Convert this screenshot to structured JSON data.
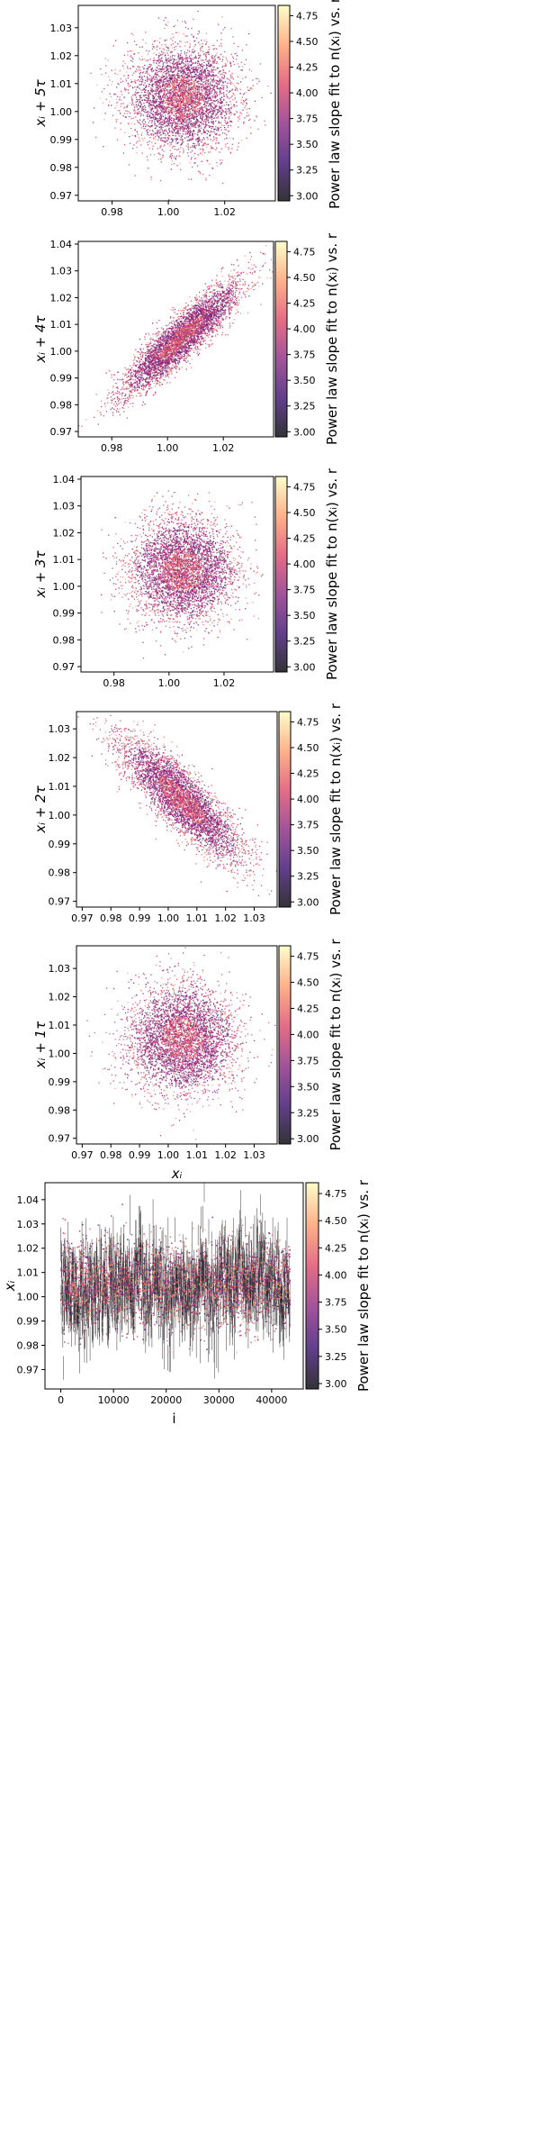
{
  "colors": {
    "colormap": [
      "#000004",
      "#3b0f70",
      "#8c2981",
      "#de4968",
      "#fe9f6d",
      "#fcfdbf"
    ],
    "axes": "#000000",
    "background": "#ffffff"
  },
  "colorbar": {
    "label": "Power law slope fit to n(xᵢ) vs. r",
    "ticks": [
      "3.00",
      "3.25",
      "3.50",
      "3.75",
      "4.00",
      "4.25",
      "4.50",
      "4.75"
    ],
    "range": [
      2.95,
      4.85
    ]
  },
  "chart_data": [
    {
      "type": "scatter",
      "description_axis": "x_i vs x_i+5tau",
      "ylabel": "xᵢ + 5τ",
      "xlabel": "",
      "xlim": [
        0.968,
        1.038
      ],
      "ylim": [
        0.968,
        1.038
      ],
      "xticks": [
        0.98,
        1.0,
        1.02
      ],
      "xtick_labels": [
        "0.98",
        "1.00",
        "1.02"
      ],
      "yticks": [
        0.97,
        0.98,
        0.99,
        1.0,
        1.01,
        1.02,
        1.03
      ],
      "ytick_labels": [
        "0.97",
        "0.98",
        "0.99",
        "1.00",
        "1.01",
        "1.02",
        "1.03"
      ],
      "correlation": 0.0,
      "center": [
        1.005,
        1.005
      ],
      "spread": 0.0095,
      "color_range": [
        3.0,
        4.8
      ]
    },
    {
      "type": "scatter",
      "ylabel": "xᵢ + 4τ",
      "xlabel": "",
      "xlim": [
        0.968,
        1.038
      ],
      "ylim": [
        0.968,
        1.041
      ],
      "xticks": [
        0.98,
        1.0,
        1.02
      ],
      "xtick_labels": [
        "0.98",
        "1.00",
        "1.02"
      ],
      "yticks": [
        0.97,
        0.98,
        0.99,
        1.0,
        1.01,
        1.02,
        1.03,
        1.04
      ],
      "ytick_labels": [
        "0.97",
        "0.98",
        "0.99",
        "1.00",
        "1.01",
        "1.02",
        "1.03",
        "1.04"
      ],
      "correlation": 0.9,
      "center": [
        1.005,
        1.005
      ],
      "spread": 0.0105,
      "color_range": [
        3.0,
        4.8
      ]
    },
    {
      "type": "scatter",
      "ylabel": "xᵢ + 3τ",
      "xlabel": "",
      "xlim": [
        0.968,
        1.038
      ],
      "ylim": [
        0.968,
        1.041
      ],
      "xticks": [
        0.98,
        1.0,
        1.02
      ],
      "xtick_labels": [
        "0.98",
        "1.00",
        "1.02"
      ],
      "yticks": [
        0.97,
        0.98,
        0.99,
        1.0,
        1.01,
        1.02,
        1.03,
        1.04
      ],
      "ytick_labels": [
        "0.97",
        "0.98",
        "0.99",
        "1.00",
        "1.01",
        "1.02",
        "1.03",
        "1.04"
      ],
      "correlation": 0.0,
      "center": [
        1.005,
        1.006
      ],
      "spread": 0.0095,
      "color_range": [
        3.0,
        4.8
      ]
    },
    {
      "type": "scatter",
      "ylabel": "xᵢ + 2τ",
      "xlabel": "",
      "xlim": [
        0.968,
        1.038
      ],
      "ylim": [
        0.968,
        1.036
      ],
      "xticks": [
        0.97,
        0.98,
        0.99,
        1.0,
        1.01,
        1.02,
        1.03
      ],
      "xtick_labels": [
        "0.97",
        "0.98",
        "0.99",
        "1.00",
        "1.01",
        "1.02",
        "1.03"
      ],
      "yticks": [
        0.97,
        0.98,
        0.99,
        1.0,
        1.01,
        1.02,
        1.03
      ],
      "ytick_labels": [
        "0.97",
        "0.98",
        "0.99",
        "1.00",
        "1.01",
        "1.02",
        "1.03"
      ],
      "correlation": -0.85,
      "center": [
        1.005,
        1.005
      ],
      "spread": 0.0105,
      "color_range": [
        3.0,
        4.8
      ]
    },
    {
      "type": "scatter",
      "ylabel": "xᵢ + 1τ",
      "xlabel": "xᵢ",
      "xlim": [
        0.968,
        1.038
      ],
      "ylim": [
        0.968,
        1.038
      ],
      "xticks": [
        0.97,
        0.98,
        0.99,
        1.0,
        1.01,
        1.02,
        1.03
      ],
      "xtick_labels": [
        "0.97",
        "0.98",
        "0.99",
        "1.00",
        "1.01",
        "1.02",
        "1.03"
      ],
      "yticks": [
        0.97,
        0.98,
        0.99,
        1.0,
        1.01,
        1.02,
        1.03
      ],
      "ytick_labels": [
        "0.97",
        "0.98",
        "0.99",
        "1.00",
        "1.01",
        "1.02",
        "1.03"
      ],
      "correlation": 0.0,
      "center": [
        1.005,
        1.005
      ],
      "spread": 0.0095,
      "color_range": [
        3.0,
        4.8
      ]
    },
    {
      "type": "line",
      "ylabel": "xᵢ",
      "xlabel": "i",
      "xlim": [
        -3000,
        46000
      ],
      "ylim": [
        0.962,
        1.047
      ],
      "xticks": [
        0,
        10000,
        20000,
        30000,
        40000
      ],
      "xtick_labels": [
        "0",
        "10000",
        "20000",
        "30000",
        "40000"
      ],
      "yticks": [
        0.97,
        0.98,
        0.99,
        1.0,
        1.01,
        1.02,
        1.03,
        1.04
      ],
      "ytick_labels": [
        "0.97",
        "0.98",
        "0.99",
        "1.00",
        "1.01",
        "1.02",
        "1.03",
        "1.04"
      ],
      "x_range": [
        0,
        43500
      ],
      "mean": 1.005,
      "spread": 0.0095,
      "color_range": [
        3.0,
        4.8
      ]
    }
  ]
}
